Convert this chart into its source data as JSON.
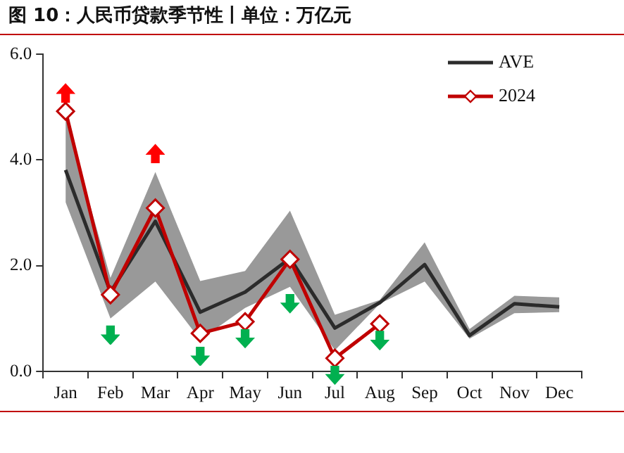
{
  "chart_data": {
    "type": "line",
    "title": "图 10：人民币贷款季节性丨单位：万亿元",
    "categories": [
      "Jan",
      "Feb",
      "Mar",
      "Apr",
      "May",
      "Jun",
      "Jul",
      "Aug",
      "Sep",
      "Oct",
      "Nov",
      "Dec"
    ],
    "series": [
      {
        "name": "AVE",
        "color": "#2b2b2b",
        "marker": "none",
        "values": [
          3.81,
          1.5,
          2.84,
          1.12,
          1.5,
          2.14,
          0.82,
          1.3,
          2.02,
          0.68,
          1.28,
          1.22
        ],
        "lower": [
          3.2,
          1.0,
          1.7,
          0.6,
          1.2,
          1.6,
          0.4,
          1.28,
          1.7,
          0.62,
          1.1,
          1.12
        ],
        "upper": [
          4.8,
          1.77,
          3.77,
          1.71,
          1.9,
          3.04,
          1.07,
          1.35,
          2.44,
          0.8,
          1.43,
          1.4
        ]
      },
      {
        "name": "2024",
        "color": "#c00000",
        "marker": "diamond",
        "values": [
          4.92,
          1.45,
          3.09,
          0.72,
          0.94,
          2.12,
          0.25,
          0.9,
          null,
          null,
          null,
          null
        ]
      }
    ],
    "ylim": [
      0,
      6
    ],
    "yticks": [
      {
        "value": 0,
        "label": "0.0"
      },
      {
        "value": 2,
        "label": "2.0"
      },
      {
        "value": 4,
        "label": "4.0"
      },
      {
        "value": 6,
        "label": "6.0"
      }
    ],
    "grid": false,
    "legend": "top right",
    "line_style": "solid"
  }
}
